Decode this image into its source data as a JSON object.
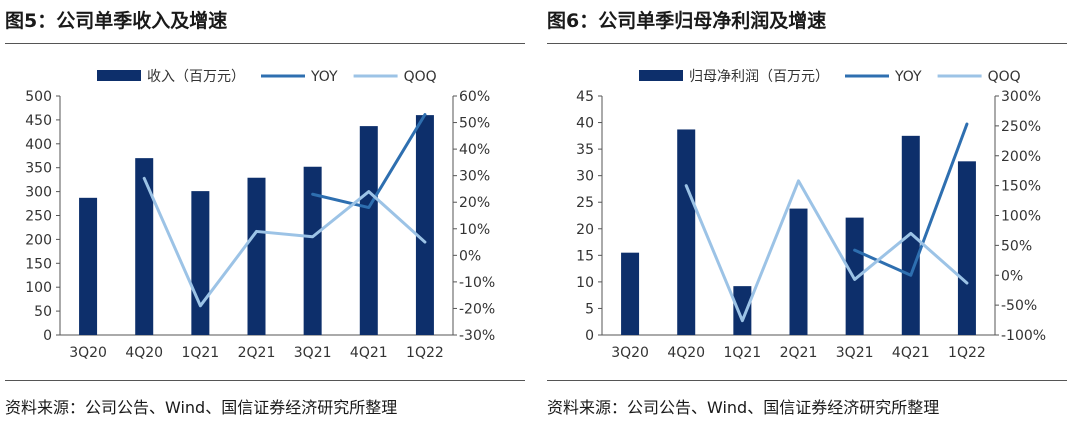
{
  "panels": [
    {
      "title": "图5：公司单季收入及增速",
      "source": "资料来源：公司公告、Wind、国信证券经济研究所整理",
      "chart_data": {
        "type": "bar",
        "categories": [
          "3Q20",
          "4Q20",
          "1Q21",
          "2Q21",
          "3Q21",
          "4Q21",
          "1Q22"
        ],
        "series": [
          {
            "name": "收入（百万元）",
            "type": "bar",
            "axis": "left",
            "color": "#0d2f6b",
            "values": [
              287,
              370,
              301,
              329,
              352,
              437,
              460
            ]
          },
          {
            "name": "YOY",
            "type": "line",
            "axis": "right",
            "color": "#2e6fb0",
            "values": [
              null,
              null,
              null,
              null,
              23,
              18,
              53
            ]
          },
          {
            "name": "QOQ",
            "type": "line",
            "axis": "right",
            "color": "#9cc3e6",
            "values": [
              null,
              29,
              -19,
              9,
              7,
              24,
              5
            ]
          }
        ],
        "ylim": [
          0,
          500
        ],
        "yticks": [
          "0",
          "50",
          "100",
          "150",
          "200",
          "250",
          "300",
          "350",
          "400",
          "450",
          "500"
        ],
        "y2lim": [
          -30,
          60
        ],
        "y2ticks": [
          "-30%",
          "-20%",
          "-10%",
          "0%",
          "10%",
          "20%",
          "30%",
          "40%",
          "50%",
          "60%"
        ],
        "legend": "top",
        "grid": false
      }
    },
    {
      "title": "图6：公司单季归母净利润及增速",
      "source": "资料来源：公司公告、Wind、国信证券经济研究所整理",
      "chart_data": {
        "type": "bar",
        "categories": [
          "3Q20",
          "4Q20",
          "1Q21",
          "2Q21",
          "3Q21",
          "4Q21",
          "1Q22"
        ],
        "series": [
          {
            "name": "归母净利润（百万元）",
            "type": "bar",
            "axis": "left",
            "color": "#0d2f6b",
            "values": [
              15.5,
              38.7,
              9.2,
              23.8,
              22.1,
              37.5,
              32.7
            ]
          },
          {
            "name": "YOY",
            "type": "line",
            "axis": "right",
            "color": "#2e6fb0",
            "values": [
              null,
              null,
              null,
              null,
              42,
              0,
              253
            ]
          },
          {
            "name": "QOQ",
            "type": "line",
            "axis": "right",
            "color": "#9cc3e6",
            "values": [
              null,
              150,
              -76,
              158,
              -7,
              70,
              -13
            ]
          }
        ],
        "ylim": [
          0,
          45
        ],
        "yticks": [
          "0",
          "5",
          "10",
          "15",
          "20",
          "25",
          "30",
          "35",
          "40",
          "45"
        ],
        "y2lim": [
          -100,
          300
        ],
        "y2ticks": [
          "-100%",
          "-50%",
          "0%",
          "50%",
          "100%",
          "150%",
          "200%",
          "250%",
          "300%"
        ],
        "legend": "top",
        "grid": false
      }
    }
  ]
}
